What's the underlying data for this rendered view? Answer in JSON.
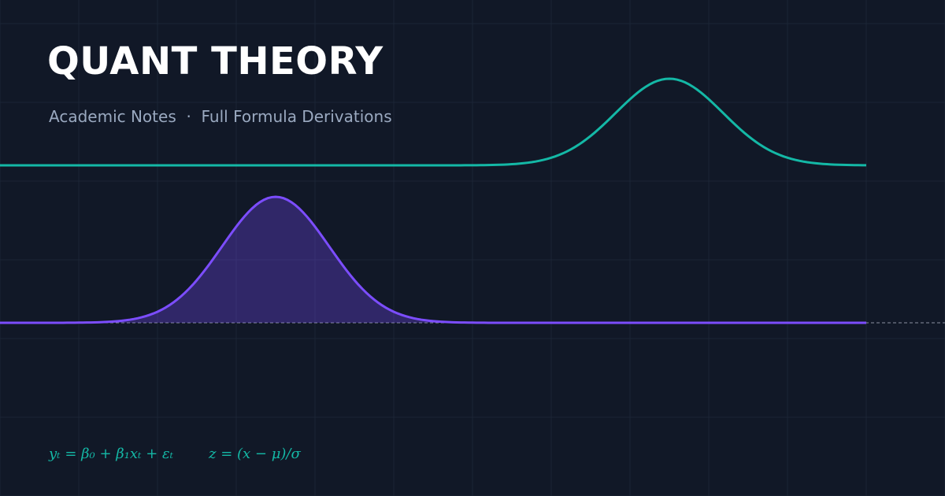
{
  "header": {
    "title": "QUANT THEORY",
    "subtitle": "Academic Notes  ·  Full Formula Derivations"
  },
  "formulas": [
    "yₜ = β₀ + β₁xₜ + εₜ",
    "z = (x − μ)/σ"
  ]
}
